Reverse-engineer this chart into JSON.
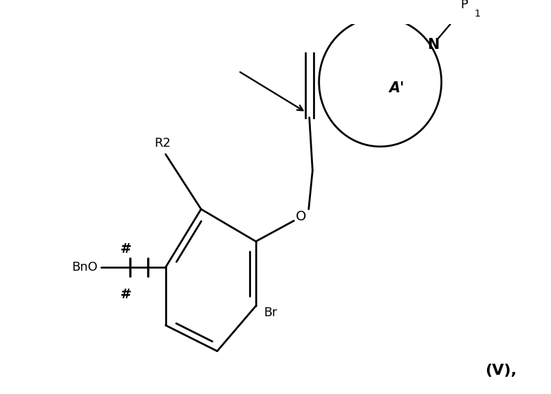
{
  "bg_color": "#ffffff",
  "fig_width": 8.01,
  "fig_height": 5.72,
  "dpi": 100,
  "label_V": "(V),",
  "label_N": "N",
  "label_P": "P",
  "label_sub1": "1",
  "label_A": "A'",
  "label_O": "O",
  "label_R2": "R2",
  "label_hash": "#",
  "label_BnO": "BnO",
  "label_Br": "Br",
  "line_color": "#000000",
  "lw": 2.0
}
